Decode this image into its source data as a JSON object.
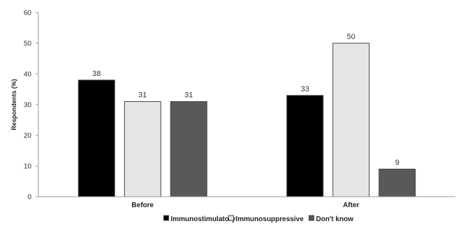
{
  "chart_data": {
    "type": "bar",
    "ylabel": "Respondents (%)",
    "ylim": [
      0,
      60
    ],
    "yticks": [
      0,
      10,
      20,
      30,
      40,
      50,
      60
    ],
    "categories": [
      "Before",
      "After"
    ],
    "series": [
      {
        "name": "Immunostimulatory",
        "values": [
          38,
          33
        ],
        "color": "#000000"
      },
      {
        "name": "Immunosuppressive",
        "values": [
          31,
          50
        ],
        "color": "#e6e6e6"
      },
      {
        "name": "Don't know",
        "values": [
          31,
          9
        ],
        "color": "#595959"
      }
    ],
    "grid": false,
    "legend": "bottom-center"
  }
}
